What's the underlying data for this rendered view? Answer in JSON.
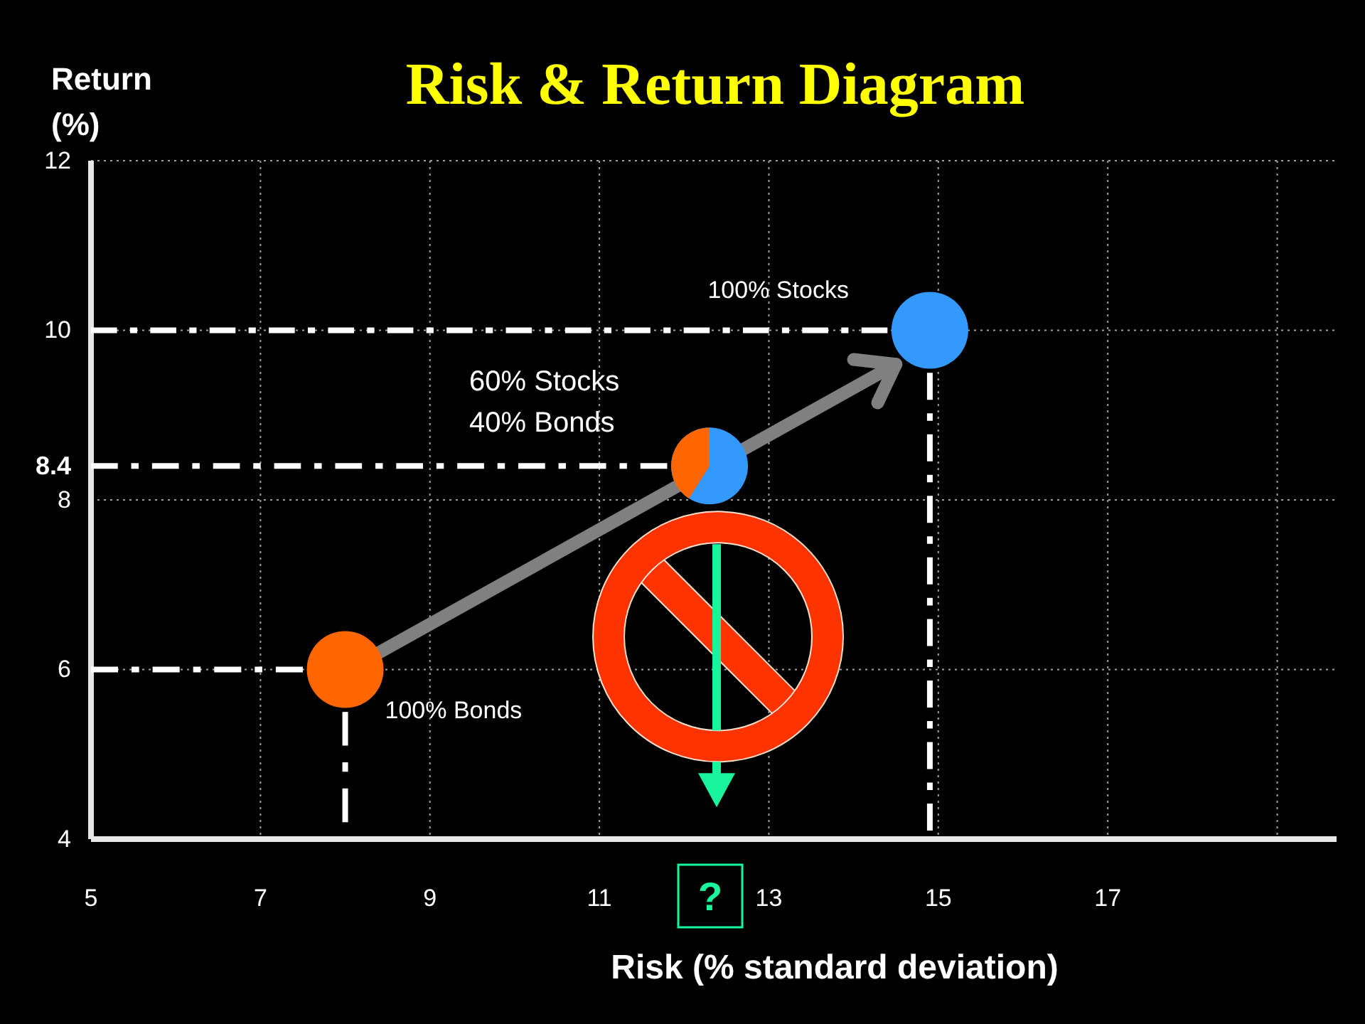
{
  "chart_data": {
    "type": "scatter",
    "title": "Risk & Return Diagram",
    "xlabel": "Risk (% standard deviation)",
    "ylabel": "Return (%)",
    "xlim": [
      5,
      19.7
    ],
    "ylim": [
      4,
      12
    ],
    "xticks": [
      5,
      7,
      9,
      11,
      13,
      15,
      17,
      {
        "value": 19,
        "label": null
      }
    ],
    "yticks": [
      4,
      6,
      8,
      8.4,
      10,
      12
    ],
    "grid": true,
    "marker": "circle",
    "series": [
      {
        "type": "line",
        "x": [
          5,
          7.5
        ],
        "values": [
          6,
          6
        ],
        "color": "#ffffff",
        "line_style": "dashed",
        "marker": "none"
      },
      {
        "type": "line",
        "x": [
          8,
          8
        ],
        "values": [
          5.5,
          4.2
        ],
        "color": "#ffffff",
        "line_style": "dashed",
        "marker": "none"
      },
      {
        "type": "line",
        "x": [
          5,
          11.8
        ],
        "values": [
          8.4,
          8.4
        ],
        "color": "#ffffff",
        "line_style": "dashed",
        "marker": "none"
      },
      {
        "type": "line",
        "x": [
          5,
          14.4
        ],
        "values": [
          10,
          10
        ],
        "color": "#ffffff",
        "line_style": "dashed",
        "marker": "none"
      },
      {
        "type": "line",
        "x": [
          14.9,
          14.9
        ],
        "values": [
          9.5,
          4.1
        ],
        "color": "#ffffff",
        "line_style": "dashed",
        "marker": "none"
      },
      {
        "type": "line",
        "x": [
          8.4,
          14.5
        ],
        "values": [
          6.2,
          9.6
        ],
        "color": "#808080",
        "marker": "none"
      },
      {
        "name": "100% Bonds",
        "x": [
          8
        ],
        "values": [
          6
        ],
        "color": "#ff6600"
      },
      {
        "name": "60% Stocks 40% Bonds",
        "x": [
          12.3
        ],
        "values": [
          8.4
        ],
        "color": "#3399ff"
      },
      {
        "name": "100% Stocks",
        "x": [
          14.9
        ],
        "values": [
          10
        ],
        "color": "#3399ff"
      }
    ],
    "annotations": [
      "?"
    ]
  }
}
